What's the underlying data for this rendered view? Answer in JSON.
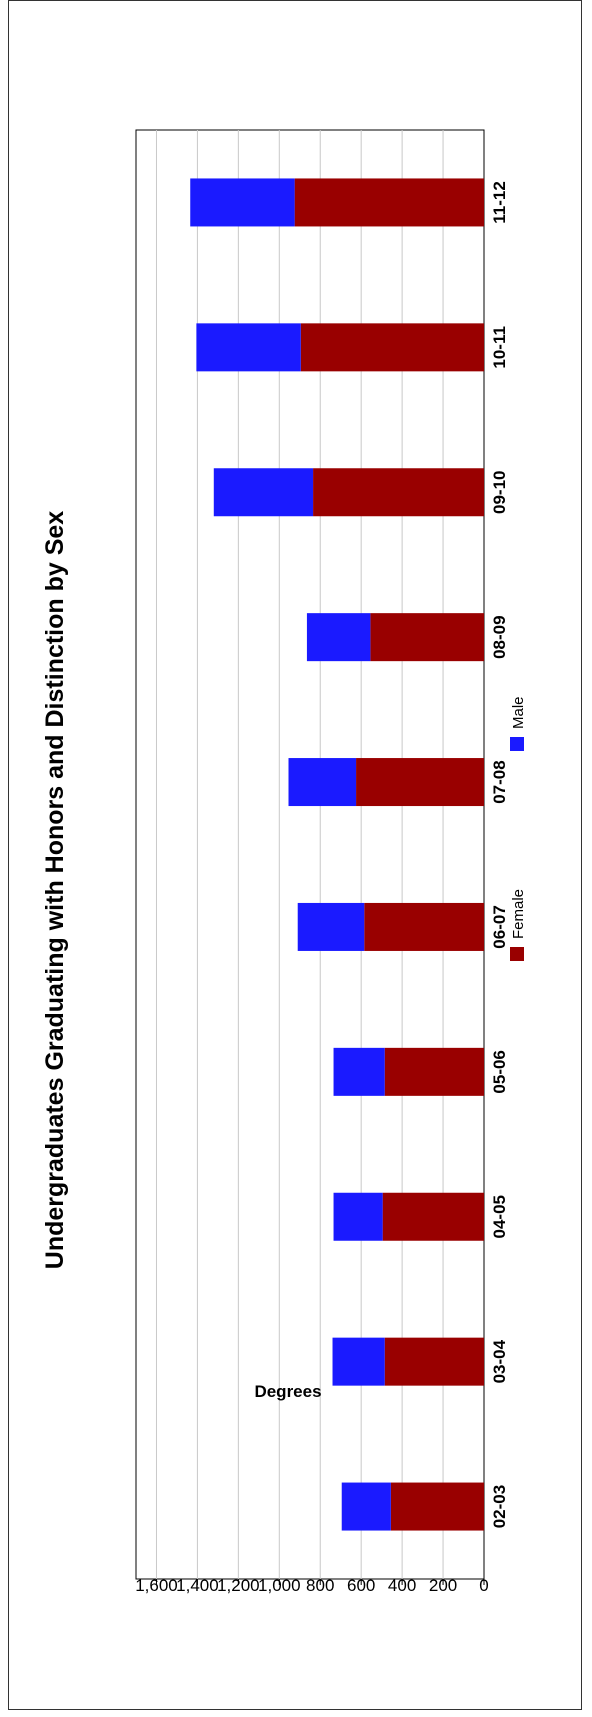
{
  "chart_data": {
    "type": "bar",
    "orientation": "stacked",
    "title": "Undergraduates Graduating with Honors and Distinction by Sex",
    "ylabel": "Degrees",
    "xlabel": "",
    "ylim": [
      0,
      1700
    ],
    "yticks": [
      0,
      200,
      400,
      600,
      800,
      1000,
      1200,
      1400,
      1600
    ],
    "ytick_labels": [
      "0",
      "200",
      "400",
      "600",
      "800",
      "1,000",
      "1,200",
      "1,400",
      "1,600"
    ],
    "grid": true,
    "legend_position": "bottom",
    "categories": [
      "02-03",
      "03-04",
      "04-05",
      "05-06",
      "06-07",
      "07-08",
      "08-09",
      "09-10",
      "10-11",
      "11-12"
    ],
    "series": [
      {
        "name": "Female",
        "color": "#990000",
        "values": [
          455,
          485,
          495,
          485,
          585,
          625,
          555,
          835,
          895,
          925
        ]
      },
      {
        "name": "Male",
        "color": "#1a1aff",
        "values": [
          240,
          255,
          240,
          250,
          325,
          330,
          310,
          485,
          510,
          510
        ]
      }
    ]
  }
}
